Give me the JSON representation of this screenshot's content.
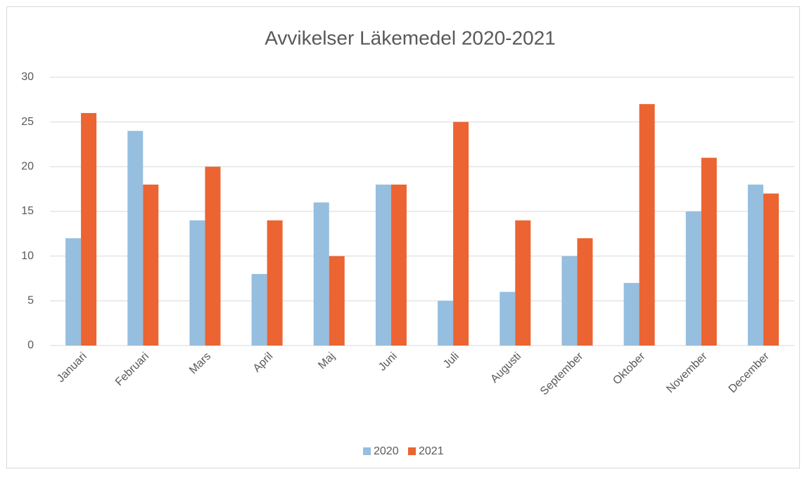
{
  "chart_data": {
    "type": "bar",
    "title": "Avvikelser Läkemedel 2020-2021",
    "categories": [
      "Januari",
      "Februari",
      "Mars",
      "April",
      "Maj",
      "Juni",
      "Juli",
      "Augusti",
      "September",
      "Oktober",
      "November",
      "December"
    ],
    "series": [
      {
        "name": "2020",
        "color": "#95bedf",
        "values": [
          12,
          24,
          14,
          8,
          16,
          18,
          5,
          6,
          10,
          7,
          15,
          18
        ]
      },
      {
        "name": "2021",
        "color": "#eb6431",
        "values": [
          26,
          18,
          20,
          14,
          10,
          18,
          25,
          14,
          12,
          27,
          21,
          17
        ]
      }
    ],
    "ylim": [
      0,
      30
    ],
    "yticks": [
      0,
      5,
      10,
      15,
      20,
      25,
      30
    ],
    "grid": true,
    "legend": "bottom"
  }
}
